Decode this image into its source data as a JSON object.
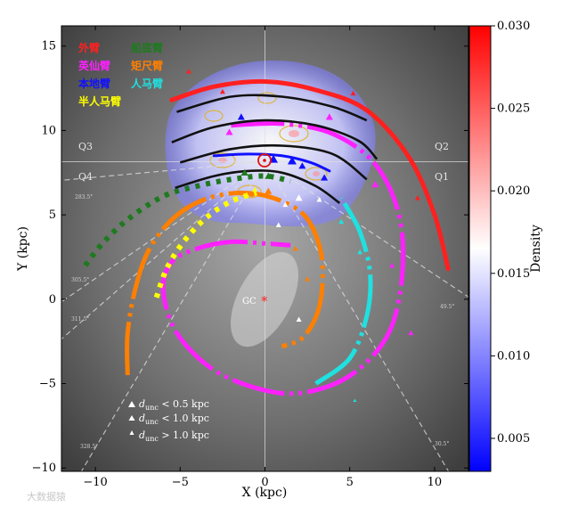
{
  "chart_data": {
    "type": "scatter",
    "xlabel": "X (kpc)",
    "ylabel": "Y (kpc)",
    "xlim": [
      -12,
      12
    ],
    "ylim": [
      -10.2,
      16.2
    ],
    "x_ticks": [
      -10,
      -5,
      0,
      5,
      10
    ],
    "y_ticks": [
      -10,
      -5,
      0,
      5,
      10,
      15
    ],
    "quadrants": [
      "Q3",
      "Q2",
      "Q4",
      "Q1"
    ],
    "colorbar": {
      "label": "Density",
      "range": [
        0.003,
        0.03
      ],
      "ticks": [
        "0.005",
        "0.010",
        "0.015",
        "0.020",
        "0.025",
        "0.030"
      ],
      "colors": [
        "#0000ff",
        "#ffffff",
        "#ff0000"
      ]
    },
    "legend_arms": [
      {
        "name": "外臂",
        "color": "#ff2020"
      },
      {
        "name": "船底臂",
        "color": "#1e7a1e"
      },
      {
        "name": "英仙臂",
        "color": "#ff20ff"
      },
      {
        "name": "矩尺臂",
        "color": "#ff7f00"
      },
      {
        "name": "本地臂",
        "color": "#1010ff"
      },
      {
        "name": "人马臂",
        "color": "#20e0e0"
      },
      {
        "name": "半人马臂",
        "color": "#ffff00"
      }
    ],
    "marker_legend": [
      "d_unc < 0.5 kpc",
      "d_unc < 1.0 kpc",
      "d_unc > 1.0 kpc"
    ],
    "marker_legend_sub": "unc",
    "center_label": "GC",
    "sun_position": [
      0,
      8.15
    ],
    "tangent_labels": [
      "283.5°",
      "305.5°",
      "311.5°",
      "328.5°",
      "49.5°",
      "30.5°"
    ],
    "arms": [
      {
        "name": "外臂",
        "color": "#ff2020",
        "style": "solid",
        "width": 5,
        "points": [
          [
            -5.5,
            11.8
          ],
          [
            -3,
            12.6
          ],
          [
            0,
            12.9
          ],
          [
            3,
            12.4
          ],
          [
            6,
            11.2
          ],
          [
            8.5,
            8.4
          ],
          [
            10,
            5
          ],
          [
            10.8,
            1.8
          ]
        ]
      },
      {
        "name": "英仙臂",
        "color": "#ff20ff",
        "style": "mixed",
        "width": 5,
        "points": [
          [
            -2,
            10.3
          ],
          [
            1,
            10.4
          ],
          [
            4,
            9.8
          ],
          [
            6.5,
            8
          ],
          [
            7.9,
            5
          ],
          [
            8.1,
            1.5
          ],
          [
            7.3,
            -2
          ],
          [
            5.2,
            -4.4
          ],
          [
            2.5,
            -5.5
          ],
          [
            0,
            -5.4
          ],
          [
            -3,
            -4.2
          ],
          [
            -5.2,
            -2
          ],
          [
            -6,
            0.5
          ],
          [
            -5.5,
            2.2
          ],
          [
            -4,
            3
          ],
          [
            -2,
            3.4
          ],
          [
            0,
            3.3
          ],
          [
            1.5,
            3.2
          ]
        ]
      },
      {
        "name": "本地臂",
        "color": "#1010ff",
        "style": "solid",
        "width": 3,
        "points": [
          [
            -3,
            8.5
          ],
          [
            -1,
            8.6
          ],
          [
            1,
            8.5
          ],
          [
            2.7,
            8.1
          ],
          [
            3.8,
            7.6
          ]
        ]
      },
      {
        "name": "矩尺臂",
        "color": "#ff7f00",
        "style": "mixed",
        "width": 5,
        "points": [
          [
            -8.1,
            -4.5
          ],
          [
            -8.1,
            -2
          ],
          [
            -7.6,
            0.8
          ],
          [
            -6.8,
            3
          ],
          [
            -5.4,
            4.8
          ],
          [
            -3.6,
            5.9
          ],
          [
            -1.5,
            6.3
          ],
          [
            0.5,
            6
          ],
          [
            2.3,
            5
          ],
          [
            3.2,
            3.2
          ],
          [
            3.4,
            1.2
          ],
          [
            3.1,
            -0.8
          ],
          [
            2.2,
            -2.3
          ],
          [
            1,
            -2.8
          ]
        ]
      },
      {
        "name": "人马臂",
        "color": "#20e0e0",
        "style": "mixed",
        "width": 5,
        "points": [
          [
            3,
            -5
          ],
          [
            5,
            -3.5
          ],
          [
            6,
            -1
          ],
          [
            6.2,
            1.5
          ],
          [
            5.6,
            4
          ],
          [
            4.5,
            6
          ]
        ]
      },
      {
        "name": "船底臂",
        "color": "#1e7a1e",
        "style": "dotted",
        "width": 6,
        "points": [
          [
            -10.6,
            2
          ],
          [
            -9.5,
            3.4
          ],
          [
            -8,
            4.8
          ],
          [
            -6,
            6.1
          ],
          [
            -4,
            6.7
          ],
          [
            -2,
            7.1
          ],
          [
            0,
            7.3
          ],
          [
            1.5,
            7
          ]
        ]
      },
      {
        "name": "半人马臂",
        "color": "#ffff00",
        "style": "dotted",
        "width": 6,
        "points": [
          [
            -6.4,
            0.1
          ],
          [
            -5.8,
            1.8
          ],
          [
            -4.8,
            3.4
          ],
          [
            -3.5,
            4.8
          ],
          [
            -2,
            5.8
          ],
          [
            -0.5,
            6.3
          ]
        ]
      }
    ],
    "fit_lines": [
      [
        [
          -5.2,
          11.1
        ],
        [
          -2,
          12
        ],
        [
          1,
          12
        ],
        [
          4,
          11.4
        ],
        [
          6,
          10.6
        ]
      ],
      [
        [
          -5.5,
          9.3
        ],
        [
          -3,
          10.2
        ],
        [
          0,
          10.6
        ],
        [
          3,
          10.3
        ],
        [
          5.5,
          9.4
        ],
        [
          6.6,
          8.3
        ]
      ],
      [
        [
          -5,
          8.1
        ],
        [
          -2,
          8.9
        ],
        [
          1,
          9.1
        ],
        [
          4,
          8.6
        ],
        [
          6,
          7.1
        ]
      ],
      [
        [
          -5.3,
          6.6
        ],
        [
          -3,
          7.3
        ],
        [
          -1,
          7.6
        ],
        [
          1,
          7.5
        ],
        [
          3,
          6.7
        ],
        [
          4.4,
          5.7
        ]
      ]
    ]
  },
  "watermark": "大数据猿"
}
